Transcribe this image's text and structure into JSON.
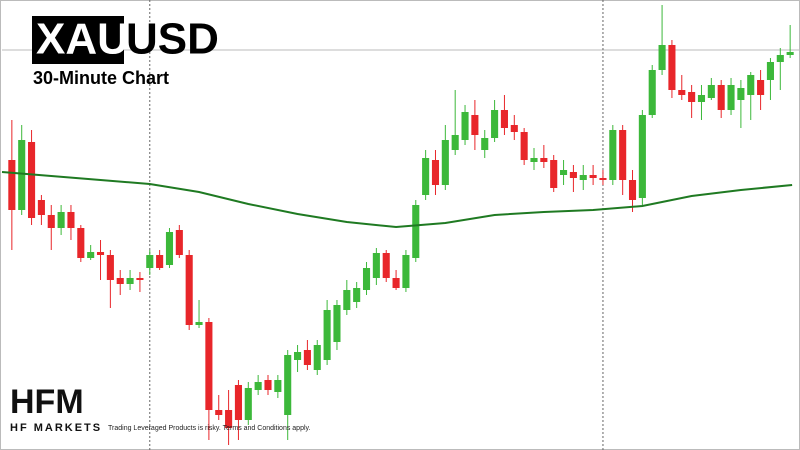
{
  "chart_data": {
    "type": "candlestick",
    "title_highlight": "XAU",
    "title": "USD",
    "subtitle": "30-Minute Chart",
    "brand": "HFM",
    "brand_name": "HF MARKETS",
    "disclaimer": "Trading Leveraged Products is risky. Terms and Conditions apply.",
    "open": [
      290,
      240,
      308,
      250,
      235,
      222,
      238,
      222,
      192,
      198,
      195,
      172,
      166,
      172,
      182,
      195,
      185,
      220,
      195,
      125,
      128,
      40,
      40,
      65,
      30,
      60,
      70,
      58,
      35,
      90,
      100,
      80,
      90,
      108,
      140,
      148,
      160,
      172,
      197,
      172,
      162,
      192,
      255,
      290,
      265,
      300,
      310,
      335,
      300,
      312,
      340,
      325,
      318,
      288,
      292,
      290,
      275,
      278,
      270,
      275,
      272,
      270,
      320,
      270,
      252,
      335,
      380,
      405,
      360,
      358,
      348,
      352,
      365,
      340,
      350,
      355,
      370,
      370,
      388,
      395
    ],
    "high": [
      330,
      325,
      320,
      255,
      245,
      245,
      245,
      225,
      205,
      210,
      200,
      180,
      180,
      178,
      200,
      200,
      222,
      225,
      200,
      150,
      132,
      55,
      60,
      70,
      68,
      75,
      75,
      75,
      100,
      105,
      110,
      110,
      150,
      150,
      170,
      168,
      188,
      202,
      200,
      180,
      200,
      250,
      300,
      300,
      325,
      360,
      345,
      350,
      320,
      350,
      355,
      335,
      322,
      302,
      305,
      295,
      290,
      285,
      285,
      285,
      280,
      325,
      325,
      280,
      340,
      385,
      445,
      410,
      375,
      365,
      365,
      372,
      370,
      372,
      370,
      378,
      380,
      392,
      402,
      425
    ],
    "low": [
      200,
      235,
      225,
      225,
      200,
      215,
      210,
      188,
      190,
      170,
      142,
      155,
      160,
      158,
      175,
      180,
      182,
      192,
      120,
      122,
      10,
      30,
      5,
      10,
      25,
      55,
      55,
      52,
      10,
      78,
      80,
      75,
      85,
      100,
      135,
      142,
      155,
      165,
      168,
      160,
      158,
      188,
      250,
      255,
      260,
      295,
      305,
      300,
      292,
      308,
      315,
      310,
      285,
      280,
      282,
      258,
      265,
      258,
      260,
      265,
      265,
      265,
      255,
      238,
      245,
      332,
      375,
      352,
      350,
      332,
      330,
      350,
      332,
      335,
      322,
      330,
      340,
      350,
      360,
      392
    ],
    "close": [
      240,
      310,
      232,
      235,
      222,
      238,
      222,
      192,
      198,
      195,
      170,
      166,
      172,
      170,
      195,
      182,
      218,
      195,
      125,
      128,
      40,
      35,
      22,
      30,
      62,
      68,
      60,
      70,
      95,
      98,
      85,
      105,
      140,
      145,
      160,
      162,
      182,
      197,
      172,
      162,
      195,
      245,
      292,
      265,
      310,
      315,
      338,
      315,
      312,
      340,
      322,
      318,
      290,
      292,
      288,
      262,
      280,
      272,
      275,
      272,
      270,
      320,
      270,
      250,
      335,
      380,
      405,
      360,
      355,
      348,
      355,
      365,
      340,
      365,
      362,
      375,
      355,
      388,
      395,
      398
    ],
    "up_color": "#3cb83a",
    "down_color": "#e8262a",
    "series": [
      {
        "color": "#1f7a22",
        "x": [
          0,
          5,
          10,
          15,
          20,
          25,
          30,
          35,
          40,
          45,
          50,
          55,
          60,
          65,
          70,
          75,
          80.2
        ],
        "values": [
          278,
          274,
          270,
          266,
          258,
          246,
          236,
          228,
          223,
          227,
          235,
          238,
          240,
          244,
          254,
          260,
          265
        ]
      }
    ],
    "price_line": 400,
    "session_lines": [
      15,
      61
    ],
    "xlim": [
      0,
      81
    ],
    "ylim": [
      0,
      450
    ]
  }
}
